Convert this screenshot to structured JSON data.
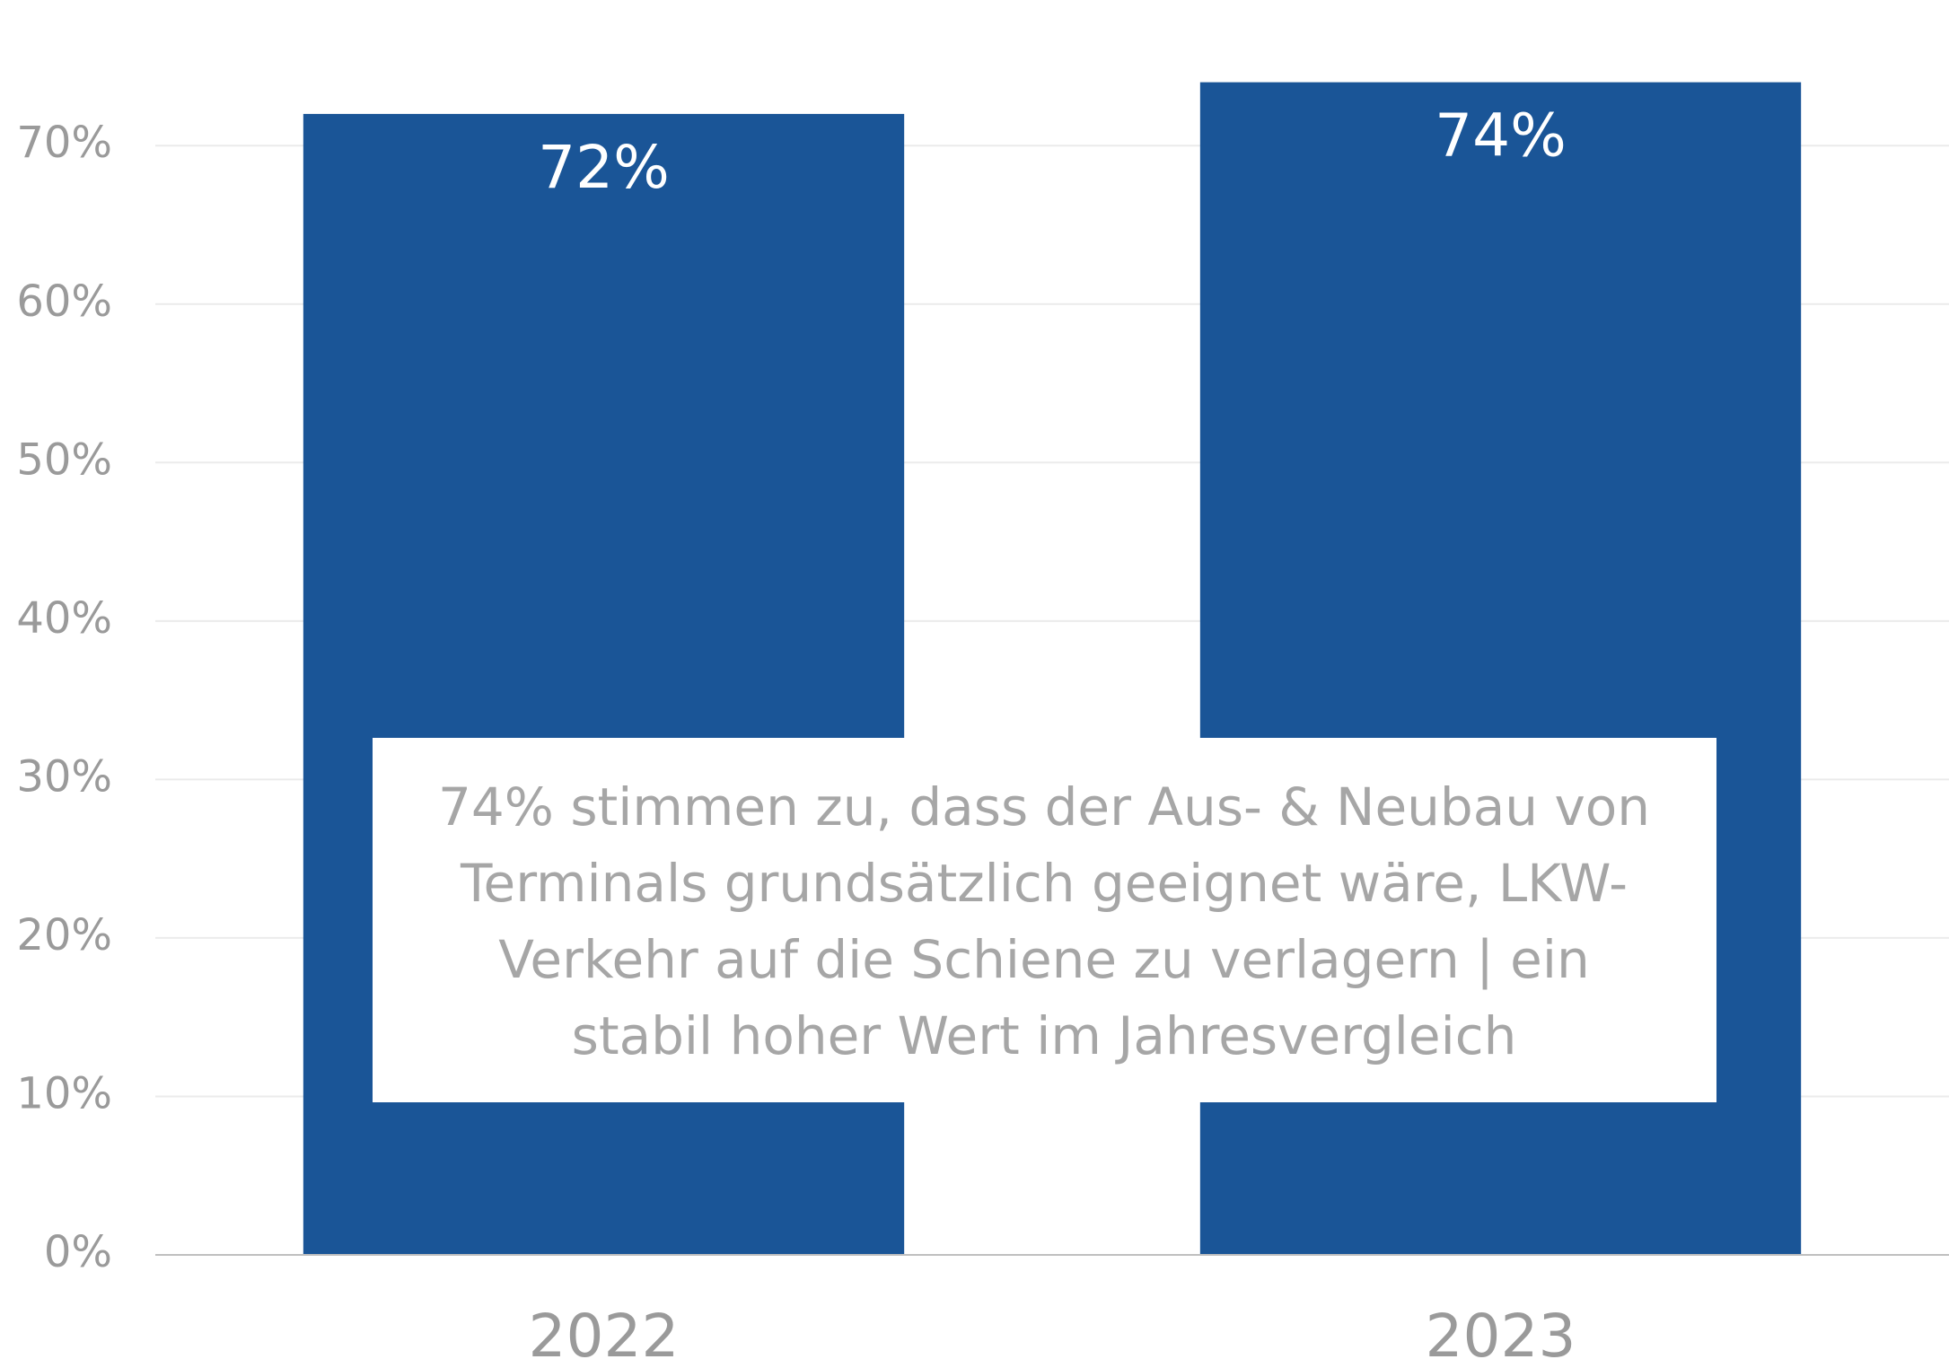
{
  "chart_data": {
    "type": "bar",
    "categories": [
      "2022",
      "2023"
    ],
    "values": [
      72,
      74
    ],
    "value_labels": [
      "72%",
      "74%"
    ],
    "color": "#1a5597",
    "ylim": [
      0,
      78
    ],
    "yticks": [
      {
        "value": 0,
        "label": "0%"
      },
      {
        "value": 10,
        "label": "10%"
      },
      {
        "value": 20,
        "label": "20%"
      },
      {
        "value": 30,
        "label": "30%"
      },
      {
        "value": 40,
        "label": "40%"
      },
      {
        "value": 50,
        "label": "50%"
      },
      {
        "value": 60,
        "label": "60%"
      },
      {
        "value": 70,
        "label": "70%"
      }
    ],
    "grid": true,
    "annotation": [
      "74% stimmen zu, dass der Aus- & Neubau von",
      "Terminals grundsätzlich geeignet wäre, LKW-",
      "Verkehr auf die Schiene zu verlagern | ein",
      "stabil hoher Wert im Jahresvergleich"
    ]
  }
}
